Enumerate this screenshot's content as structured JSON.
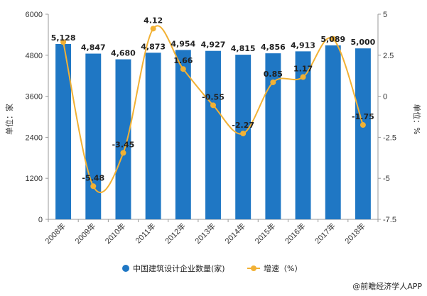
{
  "chart_data": {
    "type": "bar",
    "categories": [
      "2008年",
      "2009年",
      "2010年",
      "2011年",
      "2012年",
      "2013年",
      "2014年",
      "2015年",
      "2016年",
      "2017年",
      "2018年"
    ],
    "series": [
      {
        "name": "中国建筑设计企业数量(家)",
        "type": "bar",
        "axis": "left",
        "values": [
          5128,
          4847,
          4680,
          4873,
          4954,
          4927,
          4815,
          4856,
          4913,
          5089,
          5000
        ],
        "labels": [
          "5,128",
          "4,847",
          "4,680",
          "4,873",
          "4,954",
          "4,927",
          "4,815",
          "4,856",
          "4,913",
          "5,089",
          "5,000"
        ]
      },
      {
        "name": "增速（%）",
        "type": "line",
        "axis": "right",
        "smooth": true,
        "values": [
          3.3,
          -5.48,
          -3.45,
          4.12,
          1.66,
          -0.55,
          -2.27,
          0.85,
          1.17,
          3.5,
          -1.75
        ],
        "labels": [
          "",
          "-5.48",
          "-3.45",
          "4.12",
          "1.66",
          "-0.55",
          "-2.27",
          "0.85",
          "1.17",
          "",
          "-1.75"
        ]
      }
    ],
    "ylabel": "单位：家",
    "y2label": "单位：%",
    "ylim": [
      0,
      6000
    ],
    "y2lim": [
      -7.5,
      5
    ],
    "yticks": [
      "0",
      "1200",
      "2400",
      "3600",
      "4800",
      "6000"
    ],
    "y2ticks": [
      "-7.5",
      "-5",
      "-2.5",
      "0",
      "2.5",
      "5"
    ],
    "legend_position": "bottom",
    "grid": false,
    "colors": {
      "bar": "#1f77c4",
      "line": "#f2b134"
    }
  },
  "legend": {
    "items": [
      {
        "label": "中国建筑设计企业数量(家)"
      },
      {
        "label": "增速（%）"
      }
    ]
  },
  "footer": {
    "source": "@前瞻经济学人APP"
  }
}
